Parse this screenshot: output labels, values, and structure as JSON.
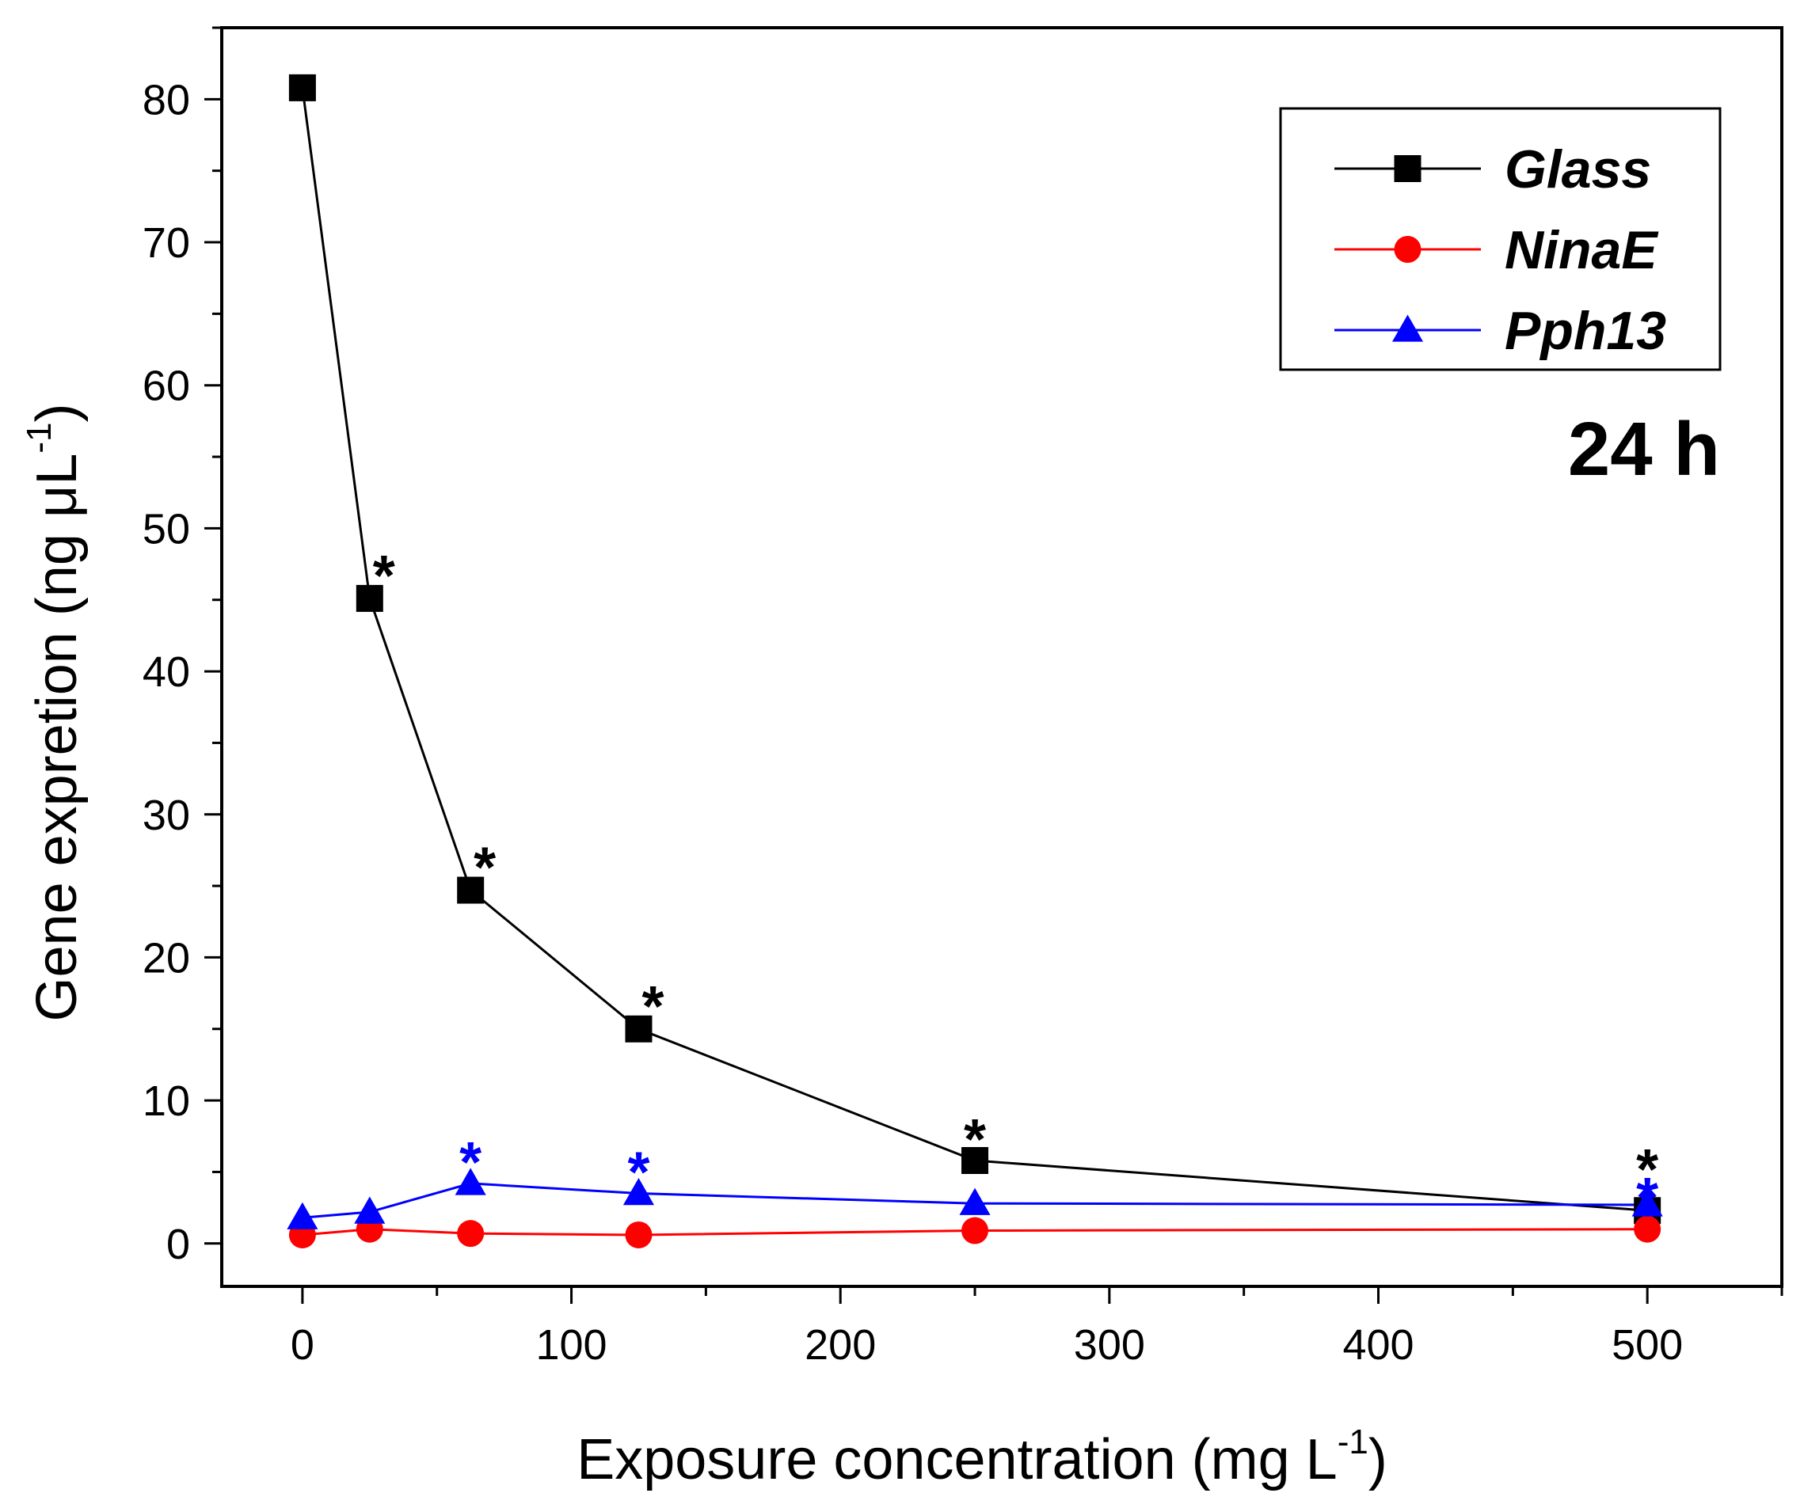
{
  "chart_data": {
    "type": "line",
    "xlabel": "Exposure concentration (mg L",
    "xlabel_sup": "-1",
    "xlabel_end": ")",
    "ylabel": "Gene expretion (ng μL",
    "ylabel_sup": "-1",
    "ylabel_end": ")",
    "xlim": [
      -30,
      550
    ],
    "ylim": [
      -3,
      85
    ],
    "x_ticks": [
      0,
      100,
      200,
      300,
      400,
      500
    ],
    "x_ticks_minor": [
      -50,
      50,
      150,
      250,
      350,
      450,
      550
    ],
    "y_ticks": [
      0,
      10,
      20,
      30,
      40,
      50,
      60,
      70,
      80
    ],
    "legend_position": "top-right",
    "annotation": "24 h",
    "series": [
      {
        "name": "Glass",
        "color": "#000000",
        "marker": "square",
        "x": [
          0,
          25,
          62.5,
          125,
          250,
          500
        ],
        "y": [
          80.8,
          45.1,
          24.7,
          15.0,
          5.8,
          2.3
        ],
        "significant": [
          false,
          true,
          true,
          true,
          true,
          true
        ]
      },
      {
        "name": "NinaE",
        "color": "#ff0000",
        "marker": "circle",
        "x": [
          0,
          25,
          62.5,
          125,
          250,
          500
        ],
        "y": [
          0.6,
          1.0,
          0.7,
          0.6,
          0.9,
          1.0
        ],
        "significant": [
          false,
          false,
          false,
          false,
          false,
          false
        ]
      },
      {
        "name": "Pph13",
        "color": "#0000ff",
        "marker": "triangle",
        "x": [
          0,
          25,
          62.5,
          125,
          250,
          500
        ],
        "y": [
          1.8,
          2.2,
          4.2,
          3.5,
          2.8,
          2.7
        ],
        "significant": [
          false,
          false,
          true,
          true,
          false,
          true
        ]
      }
    ],
    "significance_marker": "*"
  }
}
